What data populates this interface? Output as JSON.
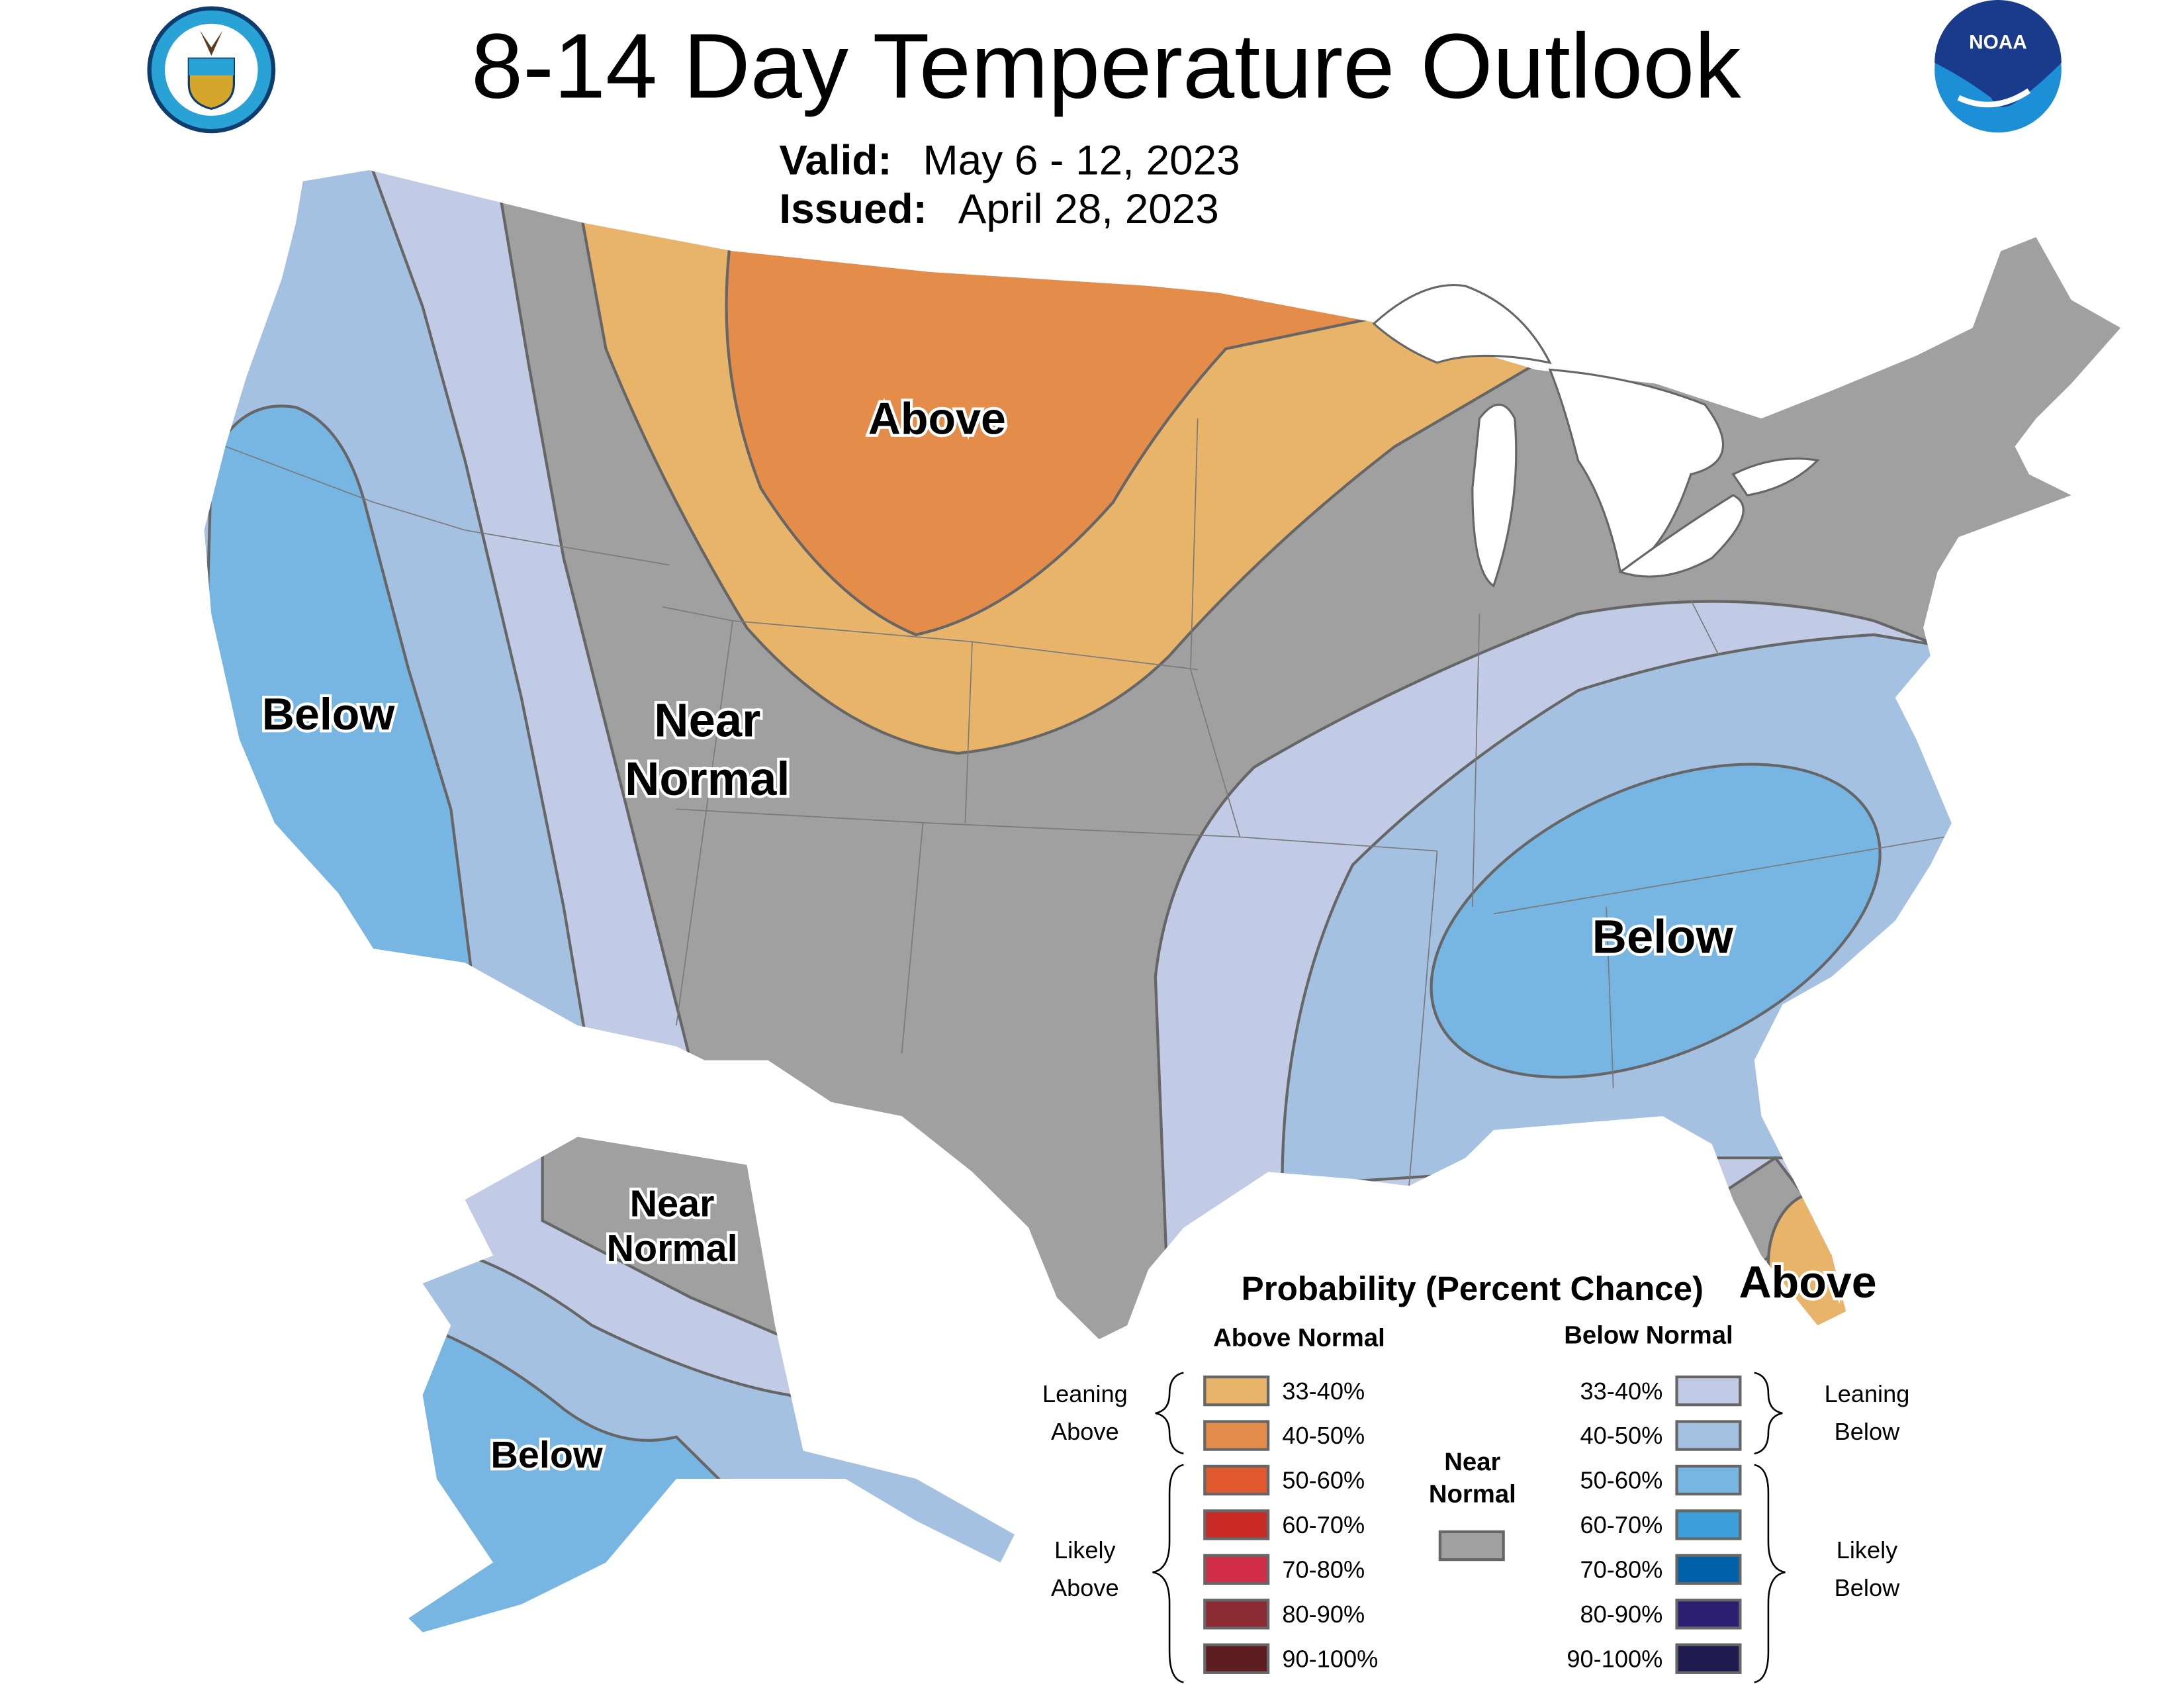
{
  "header": {
    "title": "8-14 Day Temperature Outlook",
    "valid_label": "Valid:",
    "valid_value": "May 6 - 12, 2023",
    "issued_label": "Issued:",
    "issued_value": "April 28, 2023",
    "left_logo": "Department of Commerce seal",
    "right_logo": "NOAA",
    "right_logo_text": "NOAA"
  },
  "map_labels": {
    "west": "Below",
    "plains": "Above",
    "central_line1": "Near",
    "central_line2": "Normal",
    "southeast": "Below",
    "florida": "Above",
    "alaska_north_line1": "Near",
    "alaska_north_line2": "Normal",
    "alaska_south": "Below"
  },
  "legend": {
    "title": "Probability (Percent Chance)",
    "above_header": "Above Normal",
    "below_header": "Below Normal",
    "leaning_above": [
      "Leaning",
      "Above"
    ],
    "likely_above": [
      "Likely",
      "Above"
    ],
    "leaning_below": [
      "Leaning",
      "Below"
    ],
    "likely_below": [
      "Likely",
      "Below"
    ],
    "near_normal": [
      "Near",
      "Normal"
    ],
    "near_normal_color": "#a0a0a0",
    "above": [
      {
        "label": "33-40%",
        "color": "#e8b46a"
      },
      {
        "label": "40-50%",
        "color": "#e48c4a"
      },
      {
        "label": "50-60%",
        "color": "#e0582e"
      },
      {
        "label": "60-70%",
        "color": "#c92a25"
      },
      {
        "label": "70-80%",
        "color": "#d12d48"
      },
      {
        "label": "80-90%",
        "color": "#8c2a33"
      },
      {
        "label": "90-100%",
        "color": "#5e1d20"
      }
    ],
    "below": [
      {
        "label": "33-40%",
        "color": "#c1cbe6"
      },
      {
        "label": "40-50%",
        "color": "#a4c1e2"
      },
      {
        "label": "50-60%",
        "color": "#77b5e3"
      },
      {
        "label": "60-70%",
        "color": "#3a9fdb"
      },
      {
        "label": "70-80%",
        "color": "#0061a8"
      },
      {
        "label": "80-90%",
        "color": "#2c1e71"
      },
      {
        "label": "90-100%",
        "color": "#1e1a4f"
      }
    ]
  }
}
